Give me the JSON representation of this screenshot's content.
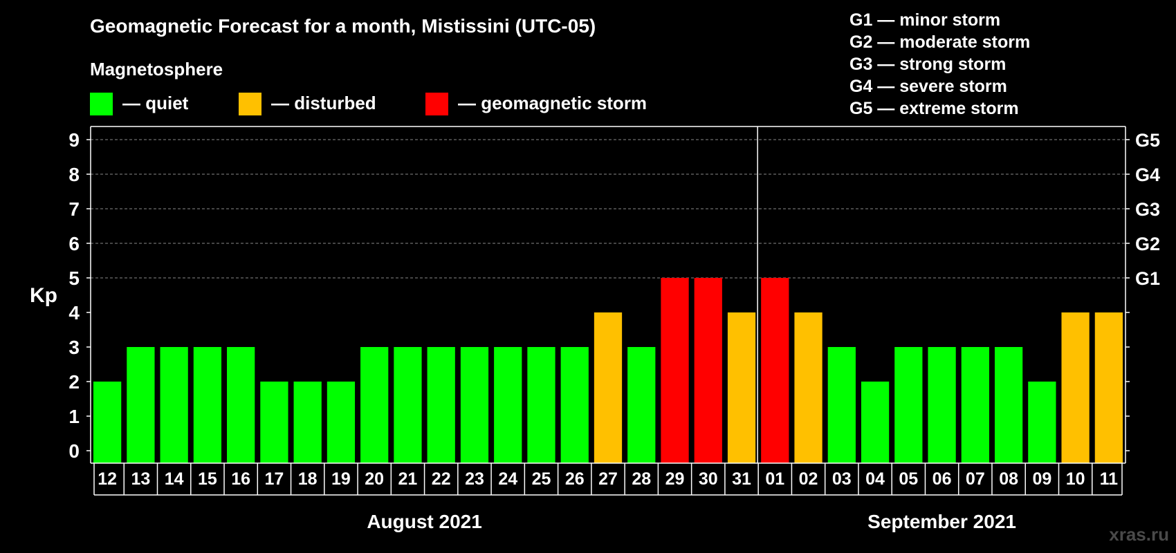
{
  "chart_data": {
    "type": "bar",
    "title": "Geomagnetic Forecast for a month, Mistissini (UTC-05)",
    "legend": {
      "heading": "Magnetosphere",
      "items": [
        {
          "key": "quiet",
          "label": "— quiet",
          "color": "#00ff00"
        },
        {
          "key": "disturbed",
          "label": "— disturbed",
          "color": "#ffc000"
        },
        {
          "key": "storm",
          "label": "— geomagnetic storm",
          "color": "#ff0000"
        }
      ]
    },
    "storm_scale": [
      "G1 — minor storm",
      "G2 — moderate storm",
      "G3 — strong storm",
      "G4 — severe storm",
      "G5 — extreme storm"
    ],
    "ylabel": "Kp",
    "ylim": [
      0,
      9
    ],
    "y_ticks": [
      "0",
      "1",
      "2",
      "3",
      "4",
      "5",
      "6",
      "7",
      "8",
      "9"
    ],
    "right_axis_labels": [
      {
        "kp": 5,
        "label": "G1"
      },
      {
        "kp": 6,
        "label": "G2"
      },
      {
        "kp": 7,
        "label": "G3"
      },
      {
        "kp": 8,
        "label": "G4"
      },
      {
        "kp": 9,
        "label": "G5"
      }
    ],
    "grid": "dashed horizontal at Kp 5–9",
    "categories": [
      "12",
      "13",
      "14",
      "15",
      "16",
      "17",
      "18",
      "19",
      "20",
      "21",
      "22",
      "23",
      "24",
      "25",
      "26",
      "27",
      "28",
      "29",
      "30",
      "31",
      "01",
      "02",
      "03",
      "04",
      "05",
      "06",
      "07",
      "08",
      "09",
      "10",
      "11"
    ],
    "values": [
      2,
      3,
      3,
      3,
      3,
      2,
      2,
      2,
      3,
      3,
      3,
      3,
      3,
      3,
      3,
      4,
      3,
      5,
      5,
      4,
      5,
      4,
      3,
      2,
      3,
      3,
      3,
      3,
      2,
      4,
      4
    ],
    "months": [
      {
        "label": "August 2021",
        "from": "12",
        "to": "31"
      },
      {
        "label": "September 2021",
        "from": "01",
        "to": "11"
      }
    ],
    "colors": {
      "quiet": "#00ff00",
      "disturbed": "#ffc000",
      "storm": "#ff0000"
    }
  },
  "watermark": "xras.ru"
}
